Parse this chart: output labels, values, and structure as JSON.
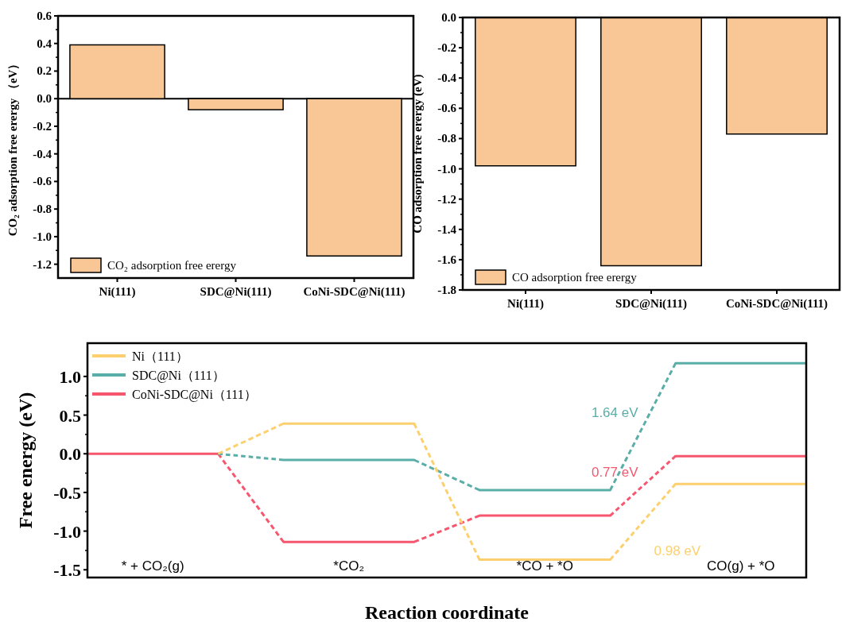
{
  "chart_data": [
    {
      "type": "bar",
      "categories": [
        "Ni(111)",
        "SDC@Ni(111)",
        "CoNi-SDC@Ni(111)"
      ],
      "series": [
        {
          "name": "CO₂ adsorption free erergy",
          "color": "#f9c796",
          "values": [
            0.39,
            -0.08,
            -1.14
          ]
        }
      ],
      "ylabel": "CO₂ adsorption free erergy （eV）",
      "ylim": [
        -1.3,
        0.6
      ],
      "yticks": [
        0.6,
        0.4,
        0.2,
        {
          "value": 0,
          "label": "0.0"
        },
        -0.2,
        -0.4,
        -0.6,
        -0.8,
        {
          "value": -1,
          "label": "-1.0"
        },
        -1.2
      ],
      "ref_lines": [
        {
          "axis": "y",
          "value": 0,
          "color": "#000000"
        }
      ],
      "legend": "bottom left",
      "grid": false
    },
    {
      "type": "bar",
      "categories": [
        "Ni(111)",
        "SDC@Ni(111)",
        "CoNi-SDC@Ni(111)"
      ],
      "series": [
        {
          "name": "CO adsorption free erergy",
          "color": "#f9c796",
          "values": [
            -0.98,
            -1.64,
            -0.77
          ]
        }
      ],
      "ylabel": "CO adsorption free erergy (eV)",
      "ylim": [
        -1.8,
        0
      ],
      "yticks": [
        {
          "value": 0,
          "label": "0.0"
        },
        -0.2,
        -0.4,
        -0.6,
        -0.8,
        {
          "value": -1,
          "label": "-1.0"
        },
        -1.2,
        -1.4,
        -1.6,
        -1.8
      ],
      "legend": "bottom left",
      "grid": false
    },
    {
      "type": "line",
      "categories": [
        null,
        "* + CO₂(g)",
        null,
        null,
        "*CO₂",
        null,
        null,
        "*CO + *O",
        null,
        null,
        "CO(g) + *O",
        null
      ],
      "series": [
        {
          "name": "Ni（111）",
          "color": "#fcd06e",
          "line_style": "dashed",
          "values": [
            null,
            null,
            0,
            0.39,
            0.39,
            0.39,
            -1.37,
            -1.37,
            -1.37,
            -0.39,
            -0.39,
            -0.39
          ]
        },
        {
          "name": "SDC@Ni（111）",
          "color": "#5aaea8",
          "line_style": "dashed",
          "values": [
            null,
            null,
            0,
            -0.08,
            -0.08,
            -0.08,
            -0.47,
            -0.47,
            -0.47,
            1.17,
            1.17,
            1.17
          ]
        },
        {
          "name": "CoNi-SDC@Ni（111）",
          "color": "#f7566f",
          "line_style": "dashed",
          "values": [
            0,
            0,
            0,
            -1.14,
            -1.14,
            -1.14,
            -0.8,
            -0.8,
            -0.8,
            -0.03,
            -0.03,
            -0.03
          ]
        }
      ],
      "xlabel": "Reaction coordinate",
      "ylabel": "Free energy (eV)",
      "ylim": [
        -1.6,
        1.43
      ],
      "yticks": [
        {
          "value": -1.5,
          "label": "-1.5"
        },
        {
          "value": -1,
          "label": "-1.0"
        },
        -0.5,
        {
          "value": 0,
          "label": "0.0"
        },
        0.5,
        {
          "value": 1,
          "label": "1.0"
        }
      ],
      "annotations": [
        "0.98 eV",
        "1.64 eV",
        "0.77 eV"
      ],
      "legend": "top left",
      "grid": false
    }
  ]
}
